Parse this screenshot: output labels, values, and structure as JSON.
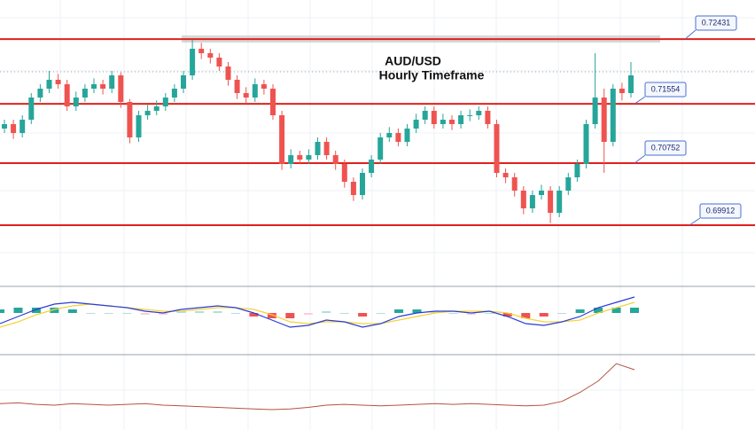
{
  "chart_data": {
    "type": "candlestick",
    "title": "AUD/USD",
    "subtitle": "Hourly Timeframe",
    "up_color": "#26a69a",
    "down_color": "#ef5350",
    "level_color": "#e0201b",
    "ylim": [
      0.6912,
      0.7296
    ],
    "levels": [
      0.72431,
      0.71554,
      0.70752,
      0.69912
    ],
    "open": [
      0.7122,
      0.7128,
      0.7116,
      0.7134,
      0.7164,
      0.7176,
      0.7188,
      0.7182,
      0.7152,
      0.7164,
      0.7176,
      0.7182,
      0.7176,
      0.7194,
      0.7158,
      0.711,
      0.714,
      0.7146,
      0.7152,
      0.7164,
      0.7176,
      0.7194,
      0.723,
      0.7224,
      0.7218,
      0.7206,
      0.7188,
      0.717,
      0.7164,
      0.7182,
      0.7176,
      0.714,
      0.7074,
      0.7086,
      0.708,
      0.7086,
      0.7104,
      0.7086,
      0.7074,
      0.705,
      0.7032,
      0.7062,
      0.708,
      0.711,
      0.7116,
      0.7104,
      0.7122,
      0.7134,
      0.7146,
      0.7128,
      0.7134,
      0.7128,
      0.714,
      0.714,
      0.7146,
      0.7128,
      0.7062,
      0.7056,
      0.7038,
      0.7014,
      0.7032,
      0.7038,
      0.7008,
      0.7038,
      0.7056,
      0.7074,
      0.7128,
      0.7164,
      0.7104,
      0.7176,
      0.717
    ],
    "high": [
      0.7134,
      0.7134,
      0.714,
      0.717,
      0.7182,
      0.72,
      0.7196,
      0.7188,
      0.7172,
      0.7182,
      0.719,
      0.7188,
      0.72,
      0.7198,
      0.7162,
      0.7146,
      0.7154,
      0.716,
      0.717,
      0.7182,
      0.72,
      0.7242,
      0.7238,
      0.723,
      0.7224,
      0.7212,
      0.7194,
      0.7178,
      0.719,
      0.7188,
      0.7182,
      0.7146,
      0.7094,
      0.7092,
      0.7094,
      0.711,
      0.711,
      0.7092,
      0.708,
      0.7056,
      0.7068,
      0.7086,
      0.7116,
      0.7124,
      0.7122,
      0.7128,
      0.7142,
      0.7152,
      0.7152,
      0.7142,
      0.714,
      0.7146,
      0.7148,
      0.7152,
      0.7152,
      0.7134,
      0.7068,
      0.7062,
      0.7044,
      0.7038,
      0.7046,
      0.7044,
      0.7044,
      0.7062,
      0.708,
      0.7134,
      0.7224,
      0.7176,
      0.7182,
      0.7184,
      0.7212
    ],
    "low": [
      0.7116,
      0.7108,
      0.711,
      0.7128,
      0.7158,
      0.717,
      0.7176,
      0.7146,
      0.7146,
      0.7158,
      0.717,
      0.7168,
      0.717,
      0.715,
      0.7102,
      0.7104,
      0.7134,
      0.714,
      0.7146,
      0.7158,
      0.717,
      0.7188,
      0.7216,
      0.721,
      0.72,
      0.718,
      0.7162,
      0.7156,
      0.7158,
      0.7168,
      0.7134,
      0.7066,
      0.7068,
      0.7074,
      0.7074,
      0.708,
      0.708,
      0.7066,
      0.7042,
      0.7024,
      0.7026,
      0.7056,
      0.7074,
      0.7104,
      0.7098,
      0.7098,
      0.7116,
      0.7128,
      0.7122,
      0.7122,
      0.712,
      0.7122,
      0.7132,
      0.7134,
      0.7122,
      0.7056,
      0.7048,
      0.703,
      0.7006,
      0.7008,
      0.7026,
      0.6994,
      0.7002,
      0.7032,
      0.705,
      0.7068,
      0.7122,
      0.7062,
      0.7098,
      0.716,
      0.7164
    ],
    "close": [
      0.7128,
      0.7116,
      0.7134,
      0.7164,
      0.7176,
      0.7188,
      0.7182,
      0.7152,
      0.7164,
      0.7176,
      0.7182,
      0.7176,
      0.7194,
      0.7158,
      0.711,
      0.714,
      0.7146,
      0.7152,
      0.7164,
      0.7176,
      0.7194,
      0.723,
      0.7224,
      0.7218,
      0.7206,
      0.7188,
      0.717,
      0.7164,
      0.7182,
      0.7176,
      0.714,
      0.7074,
      0.7086,
      0.708,
      0.7086,
      0.7104,
      0.7086,
      0.7074,
      0.705,
      0.7032,
      0.7062,
      0.708,
      0.711,
      0.7116,
      0.7104,
      0.7122,
      0.7134,
      0.7146,
      0.7128,
      0.7134,
      0.7128,
      0.714,
      0.714,
      0.7146,
      0.7128,
      0.7062,
      0.7056,
      0.7038,
      0.7014,
      0.7032,
      0.7038,
      0.7008,
      0.7038,
      0.7056,
      0.7074,
      0.7128,
      0.7164,
      0.7104,
      0.7176,
      0.717,
      0.7194
    ],
    "macd": {
      "ylim": [
        -22,
        14
      ],
      "line_color": "#2b3bd6",
      "signal_color": "#f2d33a",
      "macd": [
        -6,
        -2,
        2,
        5,
        6,
        5,
        4,
        3,
        1,
        0,
        2,
        3,
        4,
        3,
        0,
        -4,
        -8,
        -7,
        -4,
        -5,
        -8,
        -6,
        -2,
        0,
        1,
        1,
        0,
        1,
        -2,
        -6,
        -7,
        -5,
        -2,
        3,
        6,
        9
      ],
      "signal": [
        -8,
        -5,
        -1,
        2,
        4,
        5,
        4,
        3,
        2,
        1,
        1,
        2,
        3,
        3,
        2,
        -1,
        -5,
        -6,
        -5,
        -5,
        -6,
        -6,
        -4,
        -2,
        0,
        1,
        1,
        1,
        0,
        -3,
        -5,
        -5,
        -4,
        0,
        3,
        6
      ],
      "histogram": [
        2,
        3,
        3,
        3,
        2,
        0,
        0,
        0,
        -1,
        -1,
        1,
        1,
        1,
        0,
        -2,
        -3,
        -3,
        -1,
        1,
        0,
        -2,
        0,
        2,
        2,
        1,
        0,
        -1,
        0,
        -2,
        -3,
        -2,
        0,
        2,
        3,
        3,
        3
      ]
    },
    "oscillator": {
      "ylim": [
        0,
        100
      ],
      "color": "#b5533f",
      "values": [
        35,
        36,
        34,
        33,
        35,
        34,
        33,
        34,
        35,
        33,
        32,
        31,
        30,
        29,
        28,
        27,
        28,
        30,
        33,
        34,
        33,
        32,
        33,
        34,
        35,
        34,
        35,
        34,
        33,
        32,
        33,
        38,
        50,
        65,
        88,
        80
      ]
    }
  }
}
